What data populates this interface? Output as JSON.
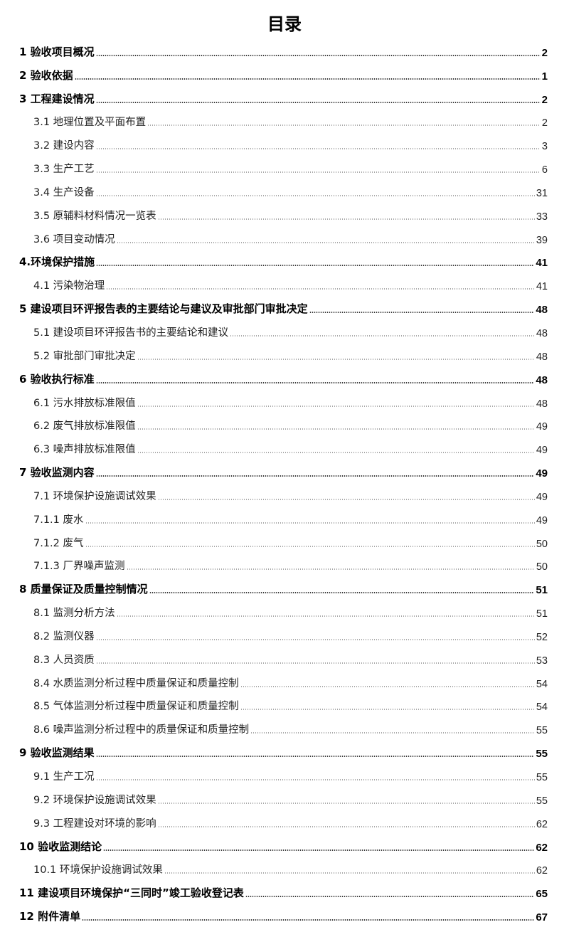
{
  "title": "目录",
  "entries": [
    {
      "level": 1,
      "label": "1 验收项目概况",
      "page": "2"
    },
    {
      "level": 1,
      "label": "2 验收依据",
      "page": "1"
    },
    {
      "level": 1,
      "label": "3 工程建设情况",
      "page": "2"
    },
    {
      "level": 2,
      "label": "3.1 地理位置及平面布置",
      "page": "2"
    },
    {
      "level": 2,
      "label": "3.2 建设内容",
      "page": "3"
    },
    {
      "level": 2,
      "label": "3.3 生产工艺",
      "page": "6"
    },
    {
      "level": 2,
      "label": "3.4 生产设备",
      "page": "31"
    },
    {
      "level": 2,
      "label": "3.5 原辅料材料情况一览表",
      "page": "33"
    },
    {
      "level": 2,
      "label": "3.6 项目变动情况",
      "page": "39"
    },
    {
      "level": 1,
      "label": "4.环境保护措施",
      "page": "41"
    },
    {
      "level": 2,
      "label": "4.1 污染物治理",
      "page": "41"
    },
    {
      "level": 1,
      "label": "5 建设项目环评报告表的主要结论与建议及审批部门审批决定",
      "page": "48"
    },
    {
      "level": 2,
      "label": "5.1 建设项目环评报告书的主要结论和建议",
      "page": "48"
    },
    {
      "level": 2,
      "label": "5.2 审批部门审批决定",
      "page": "48"
    },
    {
      "level": 1,
      "label": "6 验收执行标准",
      "page": "48"
    },
    {
      "level": 2,
      "label": "6.1 污水排放标准限值",
      "page": "48"
    },
    {
      "level": 2,
      "label": "6.2 废气排放标准限值",
      "page": "49"
    },
    {
      "level": 2,
      "label": "6.3 噪声排放标准限值",
      "page": "49"
    },
    {
      "level": 1,
      "label": "7 验收监测内容",
      "page": "49"
    },
    {
      "level": 2,
      "label": "7.1 环境保护设施调试效果",
      "page": "49"
    },
    {
      "level": 2,
      "label": "7.1.1 废水",
      "page": "49"
    },
    {
      "level": 2,
      "label": "7.1.2 废气",
      "page": "50"
    },
    {
      "level": 2,
      "label": "7.1.3 厂界噪声监测",
      "page": "50"
    },
    {
      "level": 1,
      "label": "8 质量保证及质量控制情况",
      "page": "51"
    },
    {
      "level": 2,
      "label": "8.1 监测分析方法",
      "page": "51"
    },
    {
      "level": 2,
      "label": "8.2 监测仪器",
      "page": "52"
    },
    {
      "level": 2,
      "label": "8.3 人员资质",
      "page": "53"
    },
    {
      "level": 2,
      "label": "8.4 水质监测分析过程中质量保证和质量控制",
      "page": "54"
    },
    {
      "level": 2,
      "label": "8.5 气体监测分析过程中质量保证和质量控制",
      "page": "54"
    },
    {
      "level": 2,
      "label": "8.6 噪声监测分析过程中的质量保证和质量控制",
      "page": "55"
    },
    {
      "level": 1,
      "label": "9 验收监测结果",
      "page": "55"
    },
    {
      "level": 2,
      "label": "9.1 生产工况",
      "page": "55"
    },
    {
      "level": 2,
      "label": "9.2 环境保护设施调试效果",
      "page": "55"
    },
    {
      "level": 2,
      "label": "9.3 工程建设对环境的影响",
      "page": "62"
    },
    {
      "level": 1,
      "label": "10 验收监测结论",
      "page": "62"
    },
    {
      "level": 2,
      "label": "10.1 环境保护设施调试效果",
      "page": "62"
    },
    {
      "level": 1,
      "label": "11 建设项目环境保护“三同时”竣工验收登记表",
      "page": "65"
    },
    {
      "level": 1,
      "label": "12 附件清单",
      "page": "67"
    }
  ]
}
